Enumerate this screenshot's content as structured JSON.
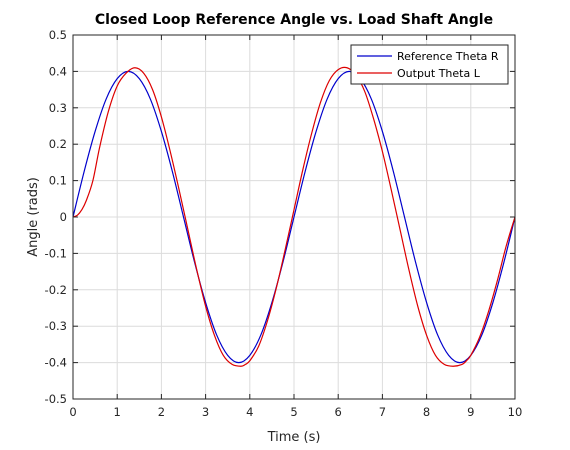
{
  "chart_data": {
    "type": "line",
    "title": "Closed Loop Reference Angle vs. Load Shaft Angle",
    "xlabel": "Time (s)",
    "ylabel": "Angle (rads)",
    "xlim": [
      0,
      10
    ],
    "ylim": [
      -0.5,
      0.5
    ],
    "xticks": [
      0,
      1,
      2,
      3,
      4,
      5,
      6,
      7,
      8,
      9,
      10
    ],
    "xtick_labels": [
      "0",
      "1",
      "2",
      "3",
      "4",
      "5",
      "6",
      "7",
      "8",
      "9",
      "10"
    ],
    "yticks": [
      0.5,
      0.4,
      0.3,
      0.2,
      0.1,
      0,
      -0.1,
      -0.2,
      -0.3,
      -0.4,
      -0.5
    ],
    "ytick_labels": [
      "0.5",
      "0.4",
      "0.3",
      "0.2",
      "0.1",
      "0",
      "-0.1",
      "-0.2",
      "-0.3",
      "-0.4",
      "-0.5"
    ],
    "grid": true,
    "legend_position": "top-right",
    "series": [
      {
        "name": "Reference Theta R",
        "color": "#0000cc",
        "x": [
          0,
          0.25,
          0.5,
          0.75,
          1.0,
          1.25,
          1.5,
          1.75,
          2.0,
          2.25,
          2.5,
          2.75,
          3.0,
          3.25,
          3.5,
          3.75,
          4.0,
          4.25,
          4.5,
          4.75,
          5.0,
          5.25,
          5.5,
          5.75,
          6.0,
          6.25,
          6.5,
          6.75,
          7.0,
          7.25,
          7.5,
          7.75,
          8.0,
          8.25,
          8.5,
          8.75,
          9.0,
          9.25,
          9.5,
          9.75,
          10.0
        ],
        "y": [
          0,
          0.124,
          0.235,
          0.324,
          0.38,
          0.4,
          0.38,
          0.324,
          0.235,
          0.124,
          0,
          -0.124,
          -0.235,
          -0.324,
          -0.38,
          -0.4,
          -0.38,
          -0.324,
          -0.235,
          -0.124,
          0,
          0.124,
          0.235,
          0.324,
          0.38,
          0.4,
          0.38,
          0.324,
          0.235,
          0.124,
          0,
          -0.124,
          -0.235,
          -0.324,
          -0.38,
          -0.4,
          -0.38,
          -0.324,
          -0.235,
          -0.124,
          0
        ]
      },
      {
        "name": "Output Theta L",
        "color": "#dd0000",
        "x": [
          0,
          0.1,
          0.2,
          0.3,
          0.45,
          0.6,
          0.8,
          1.0,
          1.2,
          1.4,
          1.6,
          1.8,
          2.0,
          2.2,
          2.4,
          2.6,
          2.8,
          3.0,
          3.2,
          3.4,
          3.6,
          3.8,
          3.9,
          4.0,
          4.2,
          4.4,
          4.6,
          4.8,
          5.0,
          5.2,
          5.4,
          5.6,
          5.8,
          6.0,
          6.2,
          6.4,
          6.6,
          6.8,
          7.0,
          7.2,
          7.4,
          7.6,
          7.8,
          8.0,
          8.2,
          8.4,
          8.6,
          8.8,
          8.9,
          9.0,
          9.2,
          9.4,
          9.6,
          9.8,
          10.0
        ],
        "y": [
          0,
          0.005,
          0.02,
          0.045,
          0.1,
          0.19,
          0.29,
          0.36,
          0.395,
          0.41,
          0.395,
          0.35,
          0.275,
          0.18,
          0.075,
          -0.035,
          -0.145,
          -0.245,
          -0.325,
          -0.38,
          -0.405,
          -0.41,
          -0.405,
          -0.395,
          -0.355,
          -0.285,
          -0.195,
          -0.09,
          0.02,
          0.13,
          0.23,
          0.315,
          0.375,
          0.405,
          0.41,
          0.39,
          0.345,
          0.27,
          0.18,
          0.075,
          -0.035,
          -0.145,
          -0.245,
          -0.325,
          -0.38,
          -0.405,
          -0.41,
          -0.405,
          -0.395,
          -0.38,
          -0.33,
          -0.26,
          -0.175,
          -0.08,
          0.0
        ]
      }
    ]
  }
}
